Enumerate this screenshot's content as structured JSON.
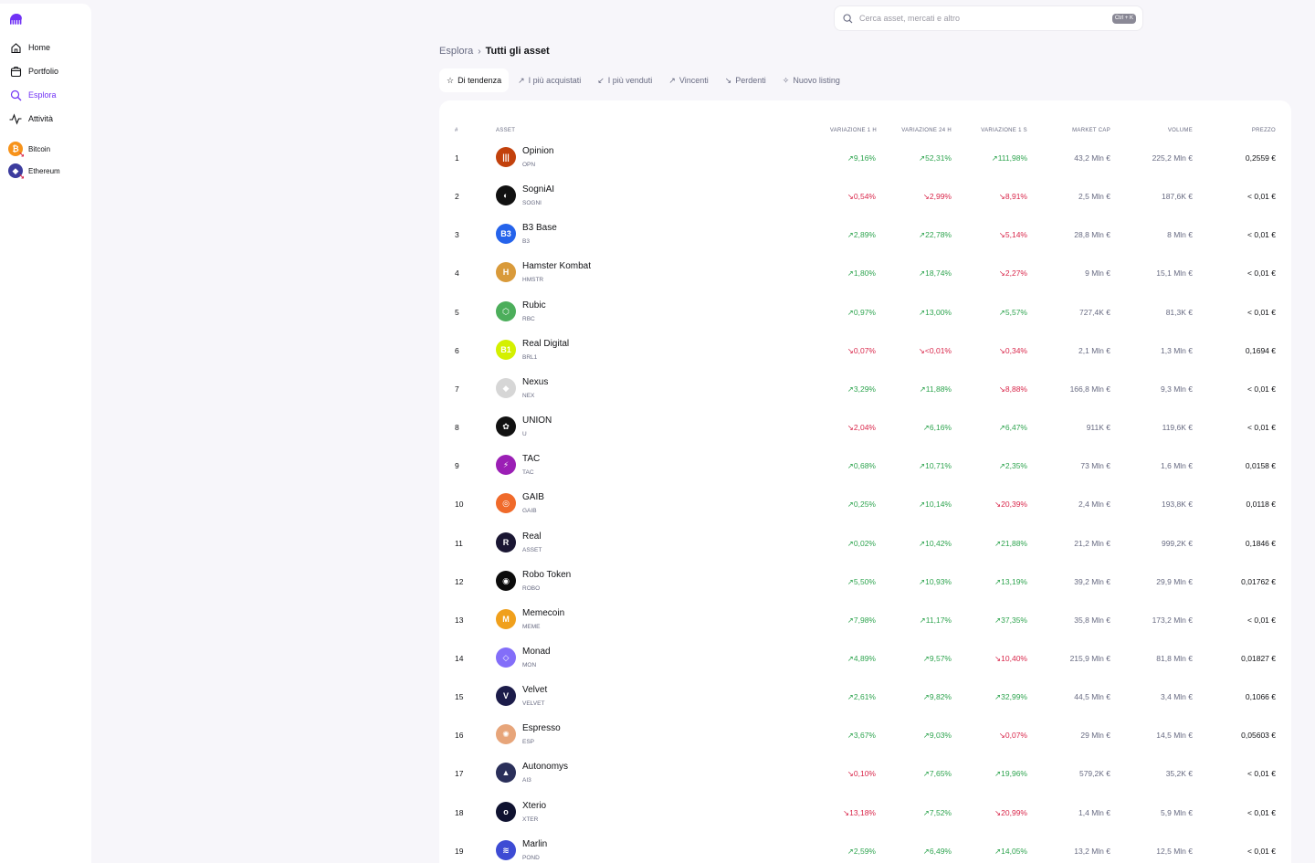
{
  "sidebar": {
    "items": [
      {
        "label": "Home",
        "icon": "home-icon",
        "active": false
      },
      {
        "label": "Portfolio",
        "icon": "portfolio-icon",
        "active": false
      },
      {
        "label": "Esplora",
        "icon": "search-icon",
        "active": true
      },
      {
        "label": "Attività",
        "icon": "activity-icon",
        "active": false
      }
    ],
    "assets": [
      {
        "label": "Bitcoin",
        "color": "#f7931a",
        "glyph": "₿"
      },
      {
        "label": "Ethereum",
        "color": "#3c3c9e",
        "glyph": "◆"
      }
    ]
  },
  "search": {
    "placeholder": "Cerca asset, mercati e altro",
    "shortcut": "Ctrl + K"
  },
  "breadcrumb": {
    "parent": "Esplora",
    "current": "Tutti gli asset"
  },
  "tabs": [
    {
      "label": "Di tendenza",
      "icon": "☆",
      "active": true
    },
    {
      "label": "I più acquistati",
      "icon": "↗",
      "active": false
    },
    {
      "label": "I più venduti",
      "icon": "↙",
      "active": false
    },
    {
      "label": "Vincenti",
      "icon": "↗",
      "active": false
    },
    {
      "label": "Perdenti",
      "icon": "↘",
      "active": false
    },
    {
      "label": "Nuovo listing",
      "icon": "✧",
      "active": false
    }
  ],
  "table": {
    "headers": {
      "num": "#",
      "asset": "ASSET",
      "change_1h": "VARIAZIONE 1 H",
      "change_24h": "VARIAZIONE 24 H",
      "change_1w": "VARIAZIONE 1 S",
      "market_cap": "MARKET CAP",
      "volume": "VOLUME",
      "price": "PREZZO"
    },
    "rows": [
      {
        "num": "1",
        "name": "Opinion",
        "symbol": "OPN",
        "color": "#c2410c",
        "glyph": "|||",
        "h1": "9,16%",
        "h1_up": true,
        "h24": "52,31%",
        "h24_up": true,
        "w1": "111,98%",
        "w1_up": true,
        "mcap": "43,2 Mln €",
        "vol": "225,2 Mln €",
        "price": "0,2559 €"
      },
      {
        "num": "2",
        "name": "SogniAI",
        "symbol": "SOGNI",
        "color": "#111111",
        "glyph": "◐",
        "h1": "0,54%",
        "h1_up": false,
        "h24": "2,99%",
        "h24_up": false,
        "w1": "8,91%",
        "w1_up": false,
        "mcap": "2,5 Mln €",
        "vol": "187,6K €",
        "price": "< 0,01 €"
      },
      {
        "num": "3",
        "name": "B3 Base",
        "symbol": "B3",
        "color": "#2563eb",
        "glyph": "B3",
        "h1": "2,89%",
        "h1_up": true,
        "h24": "22,78%",
        "h24_up": true,
        "w1": "5,14%",
        "w1_up": false,
        "mcap": "28,8 Mln €",
        "vol": "8 Mln €",
        "price": "< 0,01 €"
      },
      {
        "num": "4",
        "name": "Hamster Kombat",
        "symbol": "HMSTR",
        "color": "#d99a3a",
        "glyph": "H",
        "h1": "1,80%",
        "h1_up": true,
        "h24": "18,74%",
        "h24_up": true,
        "w1": "2,27%",
        "w1_up": false,
        "mcap": "9 Mln €",
        "vol": "15,1 Mln €",
        "price": "< 0,01 €"
      },
      {
        "num": "5",
        "name": "Rubic",
        "symbol": "RBC",
        "color": "#4cae5b",
        "glyph": "⬡",
        "h1": "0,97%",
        "h1_up": true,
        "h24": "13,00%",
        "h24_up": true,
        "w1": "5,57%",
        "w1_up": true,
        "mcap": "727,4K €",
        "vol": "81,3K €",
        "price": "< 0,01 €"
      },
      {
        "num": "6",
        "name": "Real Digital",
        "symbol": "BRL1",
        "color": "#d4f000",
        "glyph": "B1",
        "h1": "0,07%",
        "h1_up": false,
        "h24": "<0,01%",
        "h24_up": false,
        "w1": "0,34%",
        "w1_up": false,
        "mcap": "2,1 Mln €",
        "vol": "1,3 Mln €",
        "price": "0,1694 €"
      },
      {
        "num": "7",
        "name": "Nexus",
        "symbol": "NEX",
        "color": "#d6d6d6",
        "glyph": "◆",
        "h1": "3,29%",
        "h1_up": true,
        "h24": "11,88%",
        "h24_up": true,
        "w1": "8,88%",
        "w1_up": false,
        "mcap": "166,8 Mln €",
        "vol": "9,3 Mln €",
        "price": "< 0,01 €"
      },
      {
        "num": "8",
        "name": "UNION",
        "symbol": "U",
        "color": "#111111",
        "glyph": "✿",
        "h1": "2,04%",
        "h1_up": false,
        "h24": "6,16%",
        "h24_up": true,
        "w1": "6,47%",
        "w1_up": true,
        "mcap": "911K €",
        "vol": "119,6K €",
        "price": "< 0,01 €"
      },
      {
        "num": "9",
        "name": "TAC",
        "symbol": "TAC",
        "color": "#9b1fb5",
        "glyph": "⚡",
        "h1": "0,68%",
        "h1_up": true,
        "h24": "10,71%",
        "h24_up": true,
        "w1": "2,35%",
        "w1_up": true,
        "mcap": "73 Mln €",
        "vol": "1,6 Mln €",
        "price": "0,0158 €"
      },
      {
        "num": "10",
        "name": "GAIB",
        "symbol": "GAIB",
        "color": "#f06a2a",
        "glyph": "◎",
        "h1": "0,25%",
        "h1_up": true,
        "h24": "10,14%",
        "h24_up": true,
        "w1": "20,39%",
        "w1_up": false,
        "mcap": "2,4 Mln €",
        "vol": "193,8K €",
        "price": "0,0118 €"
      },
      {
        "num": "11",
        "name": "Real",
        "symbol": "ASSET",
        "color": "#1a1633",
        "glyph": "R",
        "h1": "0,02%",
        "h1_up": true,
        "h24": "10,42%",
        "h24_up": true,
        "w1": "21,88%",
        "w1_up": true,
        "mcap": "21,2 Mln €",
        "vol": "999,2K €",
        "price": "0,1846 €"
      },
      {
        "num": "12",
        "name": "Robo Token",
        "symbol": "ROBO",
        "color": "#0b0b0b",
        "glyph": "◉",
        "h1": "5,50%",
        "h1_up": true,
        "h24": "10,93%",
        "h24_up": true,
        "w1": "13,19%",
        "w1_up": true,
        "mcap": "39,2 Mln €",
        "vol": "29,9 Mln €",
        "price": "0,01762 €"
      },
      {
        "num": "13",
        "name": "Memecoin",
        "symbol": "MEME",
        "color": "#f0a01c",
        "glyph": "M",
        "h1": "7,98%",
        "h1_up": true,
        "h24": "11,17%",
        "h24_up": true,
        "w1": "37,35%",
        "w1_up": true,
        "mcap": "35,8 Mln €",
        "vol": "173,2 Mln €",
        "price": "< 0,01 €"
      },
      {
        "num": "14",
        "name": "Monad",
        "symbol": "MON",
        "color": "#836ef9",
        "glyph": "◇",
        "h1": "4,89%",
        "h1_up": true,
        "h24": "9,57%",
        "h24_up": true,
        "w1": "10,40%",
        "w1_up": false,
        "mcap": "215,9 Mln €",
        "vol": "81,8 Mln €",
        "price": "0,01827 €"
      },
      {
        "num": "15",
        "name": "Velvet",
        "symbol": "VELVET",
        "color": "#1c1c4a",
        "glyph": "V",
        "h1": "2,61%",
        "h1_up": true,
        "h24": "9,82%",
        "h24_up": true,
        "w1": "32,99%",
        "w1_up": true,
        "mcap": "44,5 Mln €",
        "vol": "3,4 Mln €",
        "price": "0,1066 €"
      },
      {
        "num": "16",
        "name": "Espresso",
        "symbol": "ESP",
        "color": "#e7a57a",
        "glyph": "✺",
        "h1": "3,67%",
        "h1_up": true,
        "h24": "9,03%",
        "h24_up": true,
        "w1": "0,07%",
        "w1_up": false,
        "mcap": "29 Mln €",
        "vol": "14,5 Mln €",
        "price": "0,05603 €"
      },
      {
        "num": "17",
        "name": "Autonomys",
        "symbol": "AI3",
        "color": "#2a2f5a",
        "glyph": "▲",
        "h1": "0,10%",
        "h1_up": false,
        "h24": "7,65%",
        "h24_up": true,
        "w1": "19,96%",
        "w1_up": true,
        "mcap": "579,2K €",
        "vol": "35,2K €",
        "price": "< 0,01 €"
      },
      {
        "num": "18",
        "name": "Xterio",
        "symbol": "XTER",
        "color": "#0f1230",
        "glyph": "o",
        "h1": "13,18%",
        "h1_up": false,
        "h24": "7,52%",
        "h24_up": true,
        "w1": "20,99%",
        "w1_up": false,
        "mcap": "1,4 Mln €",
        "vol": "5,9 Mln €",
        "price": "< 0,01 €"
      },
      {
        "num": "19",
        "name": "Marlin",
        "symbol": "POND",
        "color": "#3d4bd4",
        "glyph": "≋",
        "h1": "2,59%",
        "h1_up": true,
        "h24": "6,49%",
        "h24_up": true,
        "w1": "14,05%",
        "w1_up": true,
        "mcap": "13,2 Mln €",
        "vol": "12,5 Mln €",
        "price": "< 0,01 €"
      }
    ]
  }
}
